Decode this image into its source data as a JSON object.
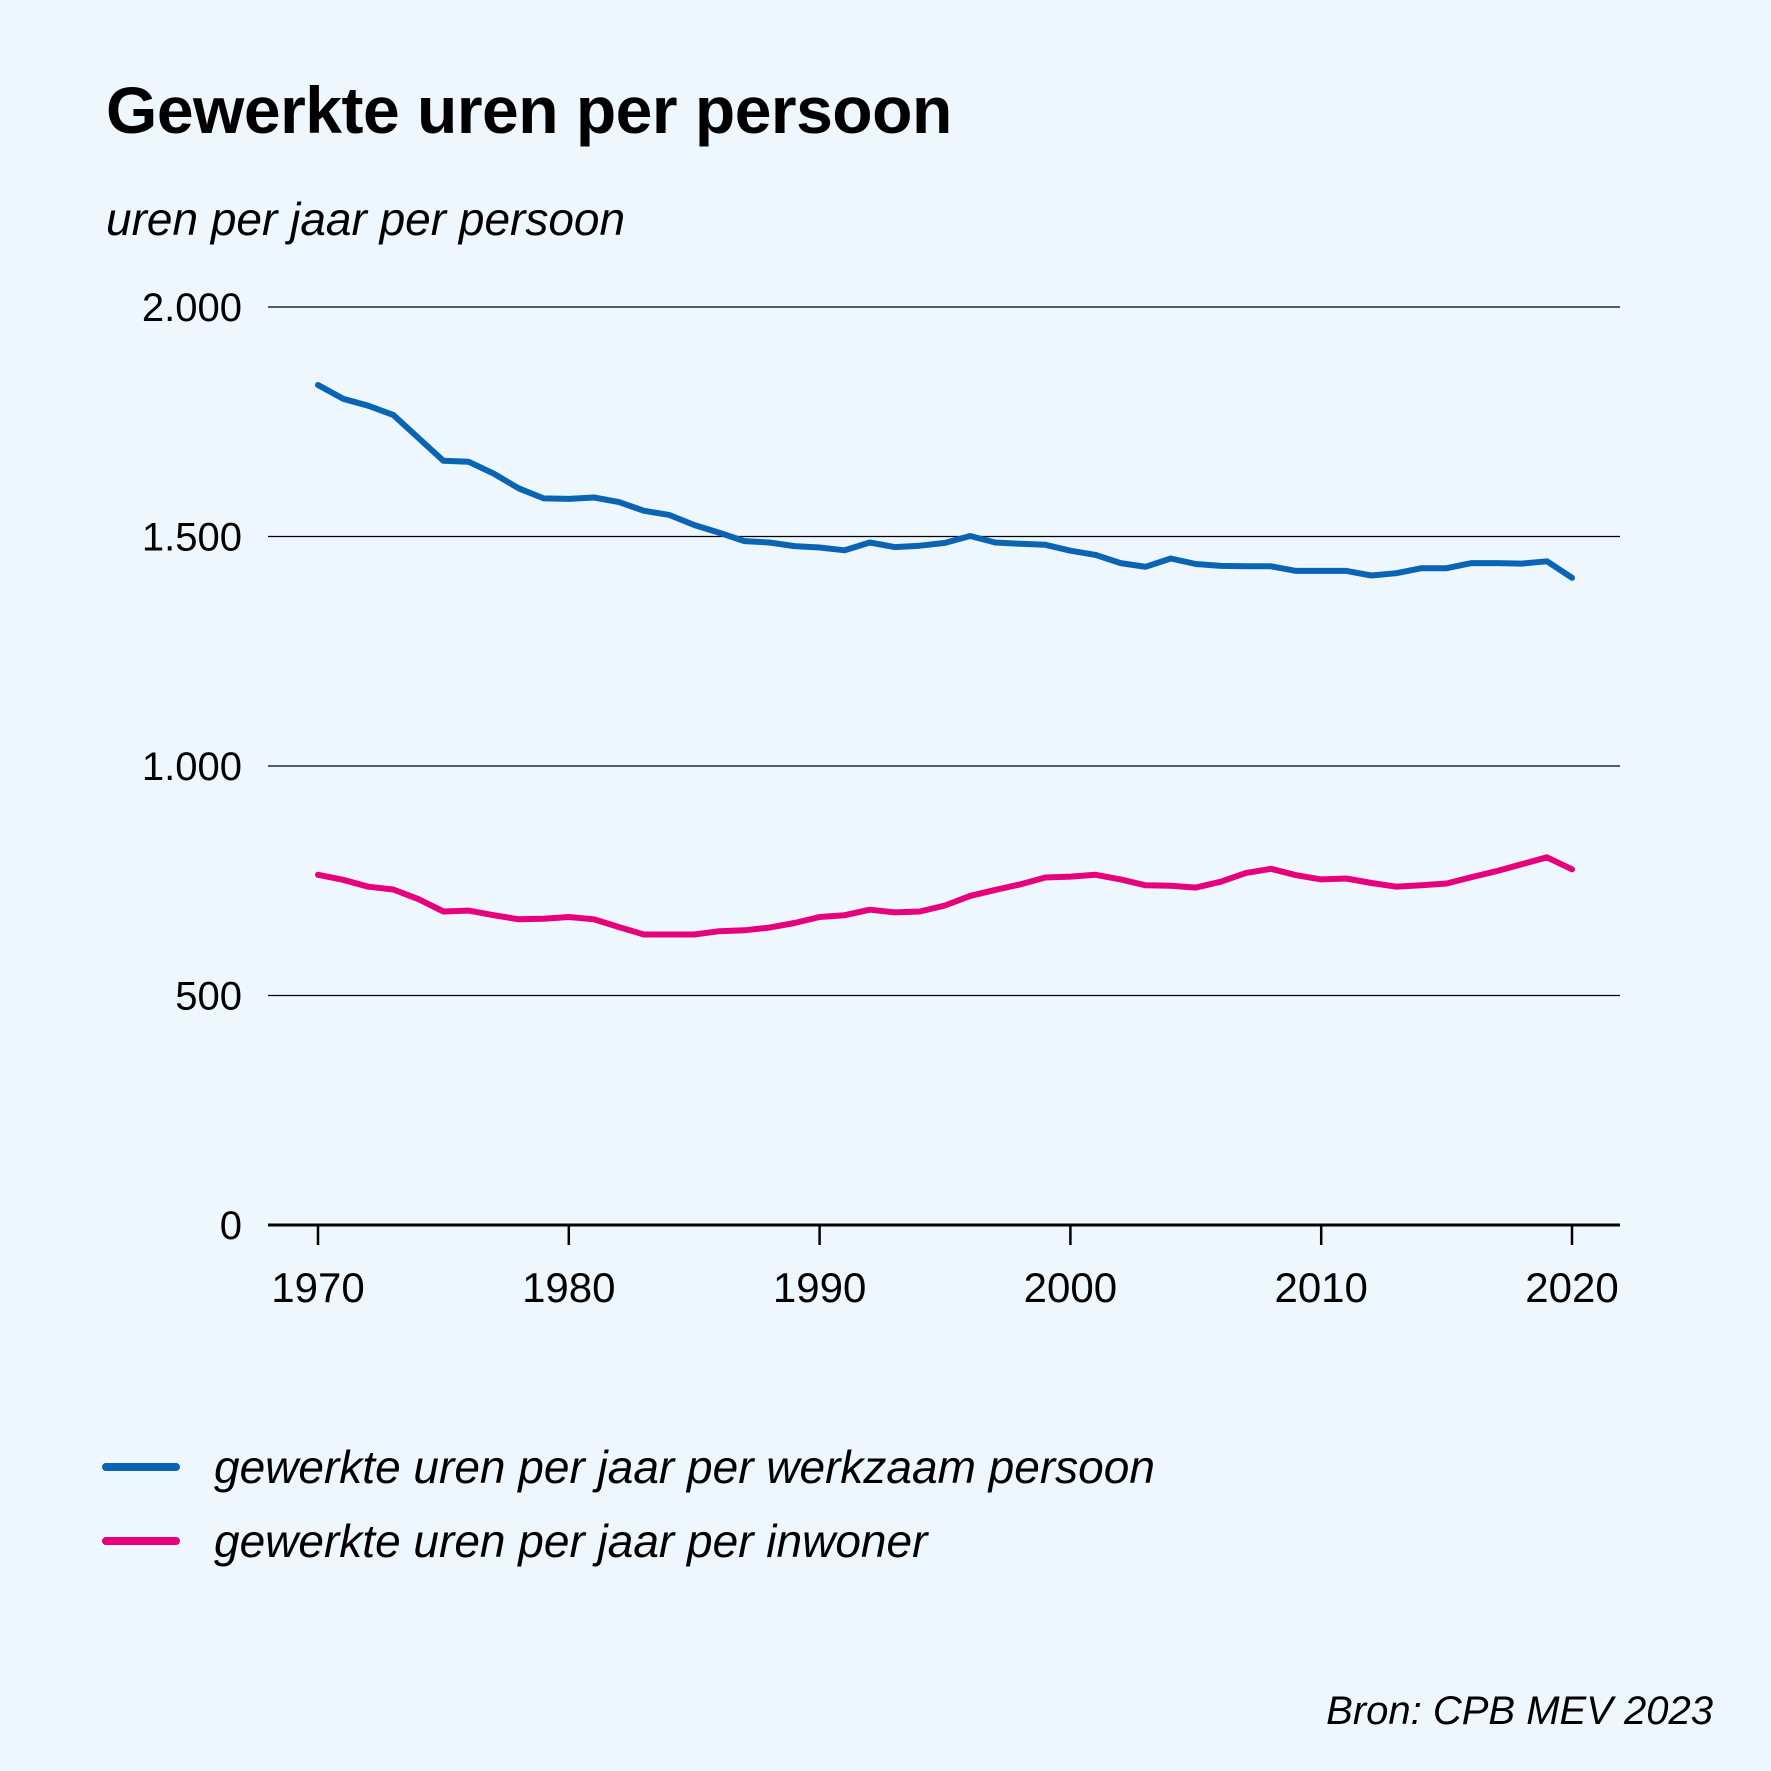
{
  "title": "Gewerkte uren per persoon",
  "subtitle": "uren per jaar per persoon",
  "source": "Bron: CPB MEV 2023",
  "colors": {
    "background": "#eef7fe",
    "series_blue": "#0a64b4",
    "series_pink": "#e6007e",
    "grid": "#000000"
  },
  "legend": [
    {
      "label": "gewerkte uren per jaar per werkzaam persoon",
      "color": "#0a64b4"
    },
    {
      "label": "gewerkte uren per jaar per inwoner",
      "color": "#e6007e"
    }
  ],
  "chart_data": {
    "type": "line",
    "title": "Gewerkte uren per persoon",
    "ylabel": "uren per jaar per persoon",
    "xlabel": "",
    "ylim": [
      0,
      2000
    ],
    "xlim": [
      1968,
      2022
    ],
    "grid": true,
    "legend_position": "bottom",
    "y_ticks": [
      0,
      500,
      1000,
      1500,
      2000
    ],
    "y_tick_labels": [
      "0",
      "500",
      "1.000",
      "1.500",
      "2.000"
    ],
    "x_ticks": [
      1970,
      1980,
      1990,
      2000,
      2010,
      2020
    ],
    "x_tick_labels": [
      "1970",
      "1980",
      "1990",
      "2000",
      "2010",
      "2020"
    ],
    "x": [
      1970,
      1971,
      1972,
      1973,
      1974,
      1975,
      1976,
      1977,
      1978,
      1979,
      1980,
      1981,
      1982,
      1983,
      1984,
      1985,
      1986,
      1987,
      1988,
      1989,
      1990,
      1991,
      1992,
      1993,
      1994,
      1995,
      1996,
      1997,
      1998,
      1999,
      2000,
      2001,
      2002,
      2003,
      2004,
      2005,
      2006,
      2007,
      2008,
      2009,
      2010,
      2011,
      2012,
      2013,
      2014,
      2015,
      2016,
      2017,
      2018,
      2019,
      2020
    ],
    "series": [
      {
        "name": "gewerkte uren per jaar per werkzaam persoon",
        "color": "#0a64b4",
        "values": [
          1830,
          1800,
          1785,
          1765,
          1715,
          1665,
          1663,
          1637,
          1605,
          1583,
          1582,
          1585,
          1575,
          1556,
          1547,
          1525,
          1508,
          1490,
          1487,
          1479,
          1476,
          1470,
          1487,
          1477,
          1480,
          1486,
          1501,
          1487,
          1484,
          1482,
          1469,
          1460,
          1442,
          1434,
          1452,
          1440,
          1436,
          1435,
          1435,
          1425,
          1425,
          1425,
          1415,
          1420,
          1431,
          1431,
          1442,
          1442,
          1441,
          1446,
          1410
        ]
      },
      {
        "name": "gewerkte uren per jaar per inwoner",
        "color": "#e6007e",
        "values": [
          763,
          752,
          737,
          731,
          710,
          683,
          685,
          675,
          666,
          667,
          671,
          666,
          649,
          633,
          633,
          633,
          640,
          642,
          648,
          658,
          671,
          675,
          687,
          681,
          683,
          696,
          717,
          730,
          742,
          757,
          759,
          763,
          753,
          740,
          739,
          735,
          748,
          767,
          776,
          762,
          753,
          755,
          745,
          737,
          740,
          744,
          758,
          771,
          786,
          801,
          775
        ]
      }
    ]
  }
}
